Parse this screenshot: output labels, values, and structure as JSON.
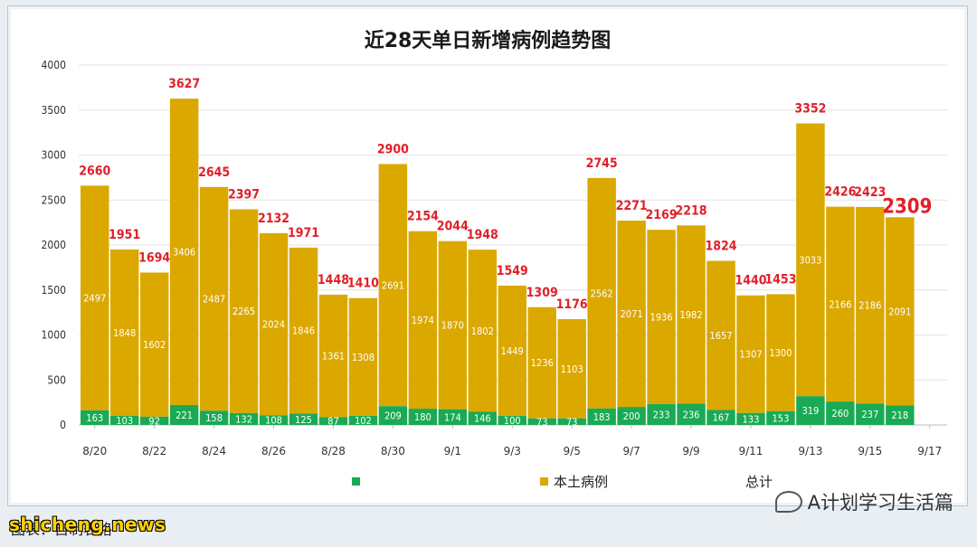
{
  "chart_data": {
    "type": "bar",
    "title": "近28天单日新增病例趋势图",
    "categories": [
      "8/20",
      "8/21",
      "8/22",
      "8/23",
      "8/24",
      "8/25",
      "8/26",
      "8/27",
      "8/28",
      "8/29",
      "8/30",
      "8/31",
      "9/1",
      "9/2",
      "9/3",
      "9/4",
      "9/5",
      "9/6",
      "9/7",
      "9/8",
      "9/9",
      "9/10",
      "9/11",
      "9/12",
      "9/13",
      "9/14",
      "9/15",
      "9/16"
    ],
    "x_tick_labels": [
      "8/20",
      "8/22",
      "8/24",
      "8/26",
      "8/28",
      "8/30",
      "9/1",
      "9/3",
      "9/5",
      "9/7",
      "9/9",
      "9/11",
      "9/13",
      "9/15",
      "9/17"
    ],
    "series": [
      {
        "name": "",
        "color": "#1aaa55",
        "values": [
          163,
          103,
          92,
          221,
          158,
          132,
          108,
          125,
          87,
          102,
          209,
          180,
          174,
          146,
          100,
          73,
          73,
          183,
          200,
          233,
          236,
          167,
          133,
          153,
          319,
          260,
          237,
          218
        ]
      },
      {
        "name": "本土病例",
        "color": "#dba800",
        "values": [
          2497,
          1848,
          1602,
          3406,
          2487,
          2265,
          2024,
          1846,
          1361,
          1308,
          2691,
          1974,
          1870,
          1802,
          1449,
          1236,
          1103,
          2562,
          2071,
          1936,
          1982,
          1657,
          1307,
          1300,
          3033,
          2166,
          2186,
          2091
        ]
      },
      {
        "name": "总计",
        "color": "#e0202a",
        "values": [
          2660,
          1951,
          1694,
          3627,
          2645,
          2397,
          2132,
          1971,
          1448,
          1410,
          2900,
          2154,
          2044,
          1948,
          1549,
          1309,
          1176,
          2745,
          2271,
          2169,
          2218,
          1824,
          1440,
          1453,
          3352,
          2426,
          2423,
          2309
        ]
      }
    ],
    "ylim": [
      0,
      4000
    ],
    "yticks": [
      0,
      500,
      1000,
      1500,
      2000,
      2500,
      3000,
      3500,
      4000
    ],
    "grid": true,
    "legend": "bottom",
    "xlabel": "",
    "ylabel": ""
  },
  "watermark": "A计划学习生活篇",
  "caption": "图表：自制表格",
  "source_mark": "shicheng.news"
}
